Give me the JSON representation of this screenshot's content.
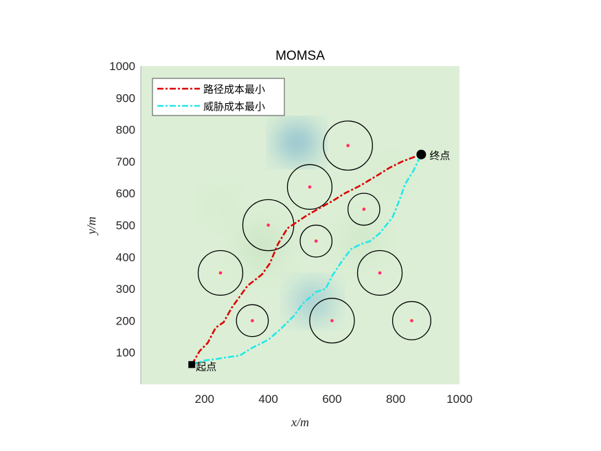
{
  "chart_data": {
    "type": "line",
    "title": "MOMSA",
    "xlabel": "x/m",
    "ylabel": "y/m",
    "xlim": [
      0,
      1000
    ],
    "ylim": [
      0,
      1000
    ],
    "xticks": [
      200,
      400,
      600,
      800,
      1000
    ],
    "yticks": [
      100,
      200,
      300,
      400,
      500,
      600,
      700,
      800,
      900,
      1000
    ],
    "grid": false,
    "legend_position": "top-left",
    "colors": {
      "background": "#dcefd6",
      "path_min": "#dd0000",
      "threat_min": "#22e8e8",
      "threat_center": "#ff1fa0",
      "heat_high": "#3a8fc8"
    },
    "start": {
      "label": "起点",
      "x": 160,
      "y": 62
    },
    "end": {
      "label": "终点",
      "x": 880,
      "y": 722
    },
    "series": [
      {
        "name": "路径成本最小",
        "style": "dash-dot",
        "color": "#dd0000",
        "x": [
          160,
          185,
          210,
          235,
          260,
          285,
          310,
          335,
          355,
          380,
          405,
          430,
          460,
          490,
          520,
          560,
          600,
          640,
          690,
          740,
          780,
          820,
          860,
          880
        ],
        "y": [
          62,
          105,
          130,
          178,
          195,
          240,
          275,
          310,
          325,
          345,
          380,
          440,
          490,
          510,
          530,
          553,
          575,
          600,
          625,
          655,
          680,
          700,
          715,
          722
        ]
      },
      {
        "name": "威胁成本最小",
        "style": "dash-dot",
        "color": "#22e8e8",
        "x": [
          160,
          200,
          240,
          270,
          310,
          350,
          400,
          440,
          480,
          510,
          550,
          580,
          600,
          630,
          660,
          690,
          720,
          750,
          790,
          810,
          830,
          855,
          880
        ],
        "y": [
          62,
          75,
          80,
          85,
          90,
          115,
          140,
          175,
          215,
          255,
          290,
          300,
          340,
          385,
          425,
          440,
          450,
          475,
          525,
          575,
          630,
          670,
          722
        ]
      }
    ],
    "threats": [
      {
        "x": 650,
        "y": 750,
        "r": 77
      },
      {
        "x": 530,
        "y": 620,
        "r": 70
      },
      {
        "x": 700,
        "y": 550,
        "r": 50
      },
      {
        "x": 400,
        "y": 500,
        "r": 80
      },
      {
        "x": 550,
        "y": 450,
        "r": 50
      },
      {
        "x": 250,
        "y": 350,
        "r": 70
      },
      {
        "x": 750,
        "y": 350,
        "r": 70
      },
      {
        "x": 350,
        "y": 200,
        "r": 50
      },
      {
        "x": 600,
        "y": 200,
        "r": 70
      },
      {
        "x": 850,
        "y": 200,
        "r": 60
      }
    ],
    "heat_spots": [
      {
        "x": 490,
        "y": 760,
        "sx": 80,
        "sy": 70,
        "intensity": 1.0
      },
      {
        "x": 540,
        "y": 260,
        "sx": 85,
        "sy": 75,
        "intensity": 0.75
      },
      {
        "x": 380,
        "y": 430,
        "sx": 110,
        "sy": 120,
        "intensity": 0.35
      },
      {
        "x": 690,
        "y": 450,
        "sx": 90,
        "sy": 110,
        "intensity": 0.3
      },
      {
        "x": 250,
        "y": 560,
        "sx": 70,
        "sy": 80,
        "intensity": 0.22
      },
      {
        "x": 780,
        "y": 650,
        "sx": 90,
        "sy": 80,
        "intensity": 0.18
      }
    ]
  }
}
